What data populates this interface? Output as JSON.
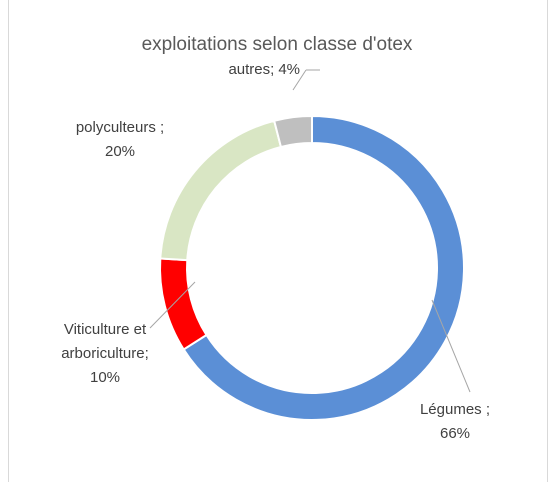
{
  "chart_data": {
    "type": "donut",
    "title": "exploitations selon classe d'otex",
    "categories": [
      "Légumes ;",
      "Viticulture et arboriculture;",
      "polyculteurs ;",
      "autres;"
    ],
    "values": [
      66,
      10,
      20,
      4
    ],
    "value_labels": [
      "66%",
      "10%",
      "20%",
      "4%"
    ],
    "colors": [
      "#5b8fd6",
      "#ff0000",
      "#d9e6c4",
      "#bfbfbf"
    ]
  }
}
